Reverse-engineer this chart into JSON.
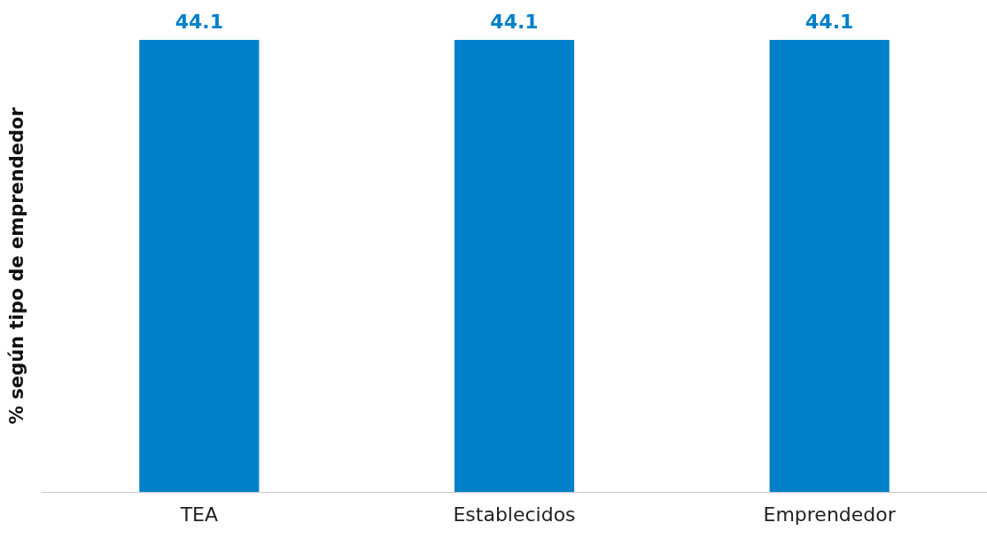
{
  "chart_data": {
    "type": "bar",
    "ylabel": "% según tipo de emprendedor",
    "categories": [
      "TEA",
      "Establecidos",
      "Emprendedor"
    ],
    "values": [
      44.1,
      44.1,
      44.1
    ],
    "color": "#0080c9",
    "ylim": [
      0,
      44.1
    ],
    "tick_labels": "x",
    "grid": false,
    "data_labels": true
  }
}
